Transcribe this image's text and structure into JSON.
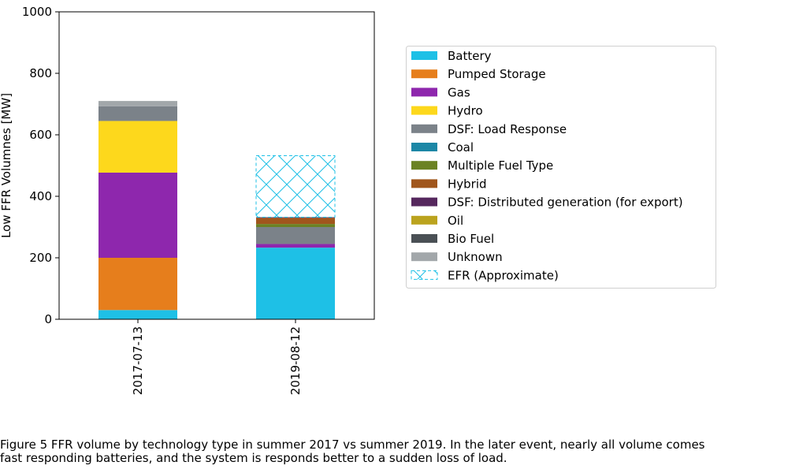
{
  "chart_data": {
    "type": "bar",
    "stacked": true,
    "title": "",
    "xlabel": "",
    "ylabel": "Low FFR Volumnes [MW]",
    "ylim": [
      0,
      1000
    ],
    "yticks": [
      0,
      200,
      400,
      600,
      800,
      1000
    ],
    "categories": [
      "2017-07-13",
      "2019-08-12"
    ],
    "legend_position": "right",
    "series": [
      {
        "name": "Battery",
        "color": "#1ec0e6",
        "values": [
          30,
          233
        ]
      },
      {
        "name": "Pumped Storage",
        "color": "#e67e1c",
        "values": [
          170,
          0
        ]
      },
      {
        "name": "Gas",
        "color": "#8e27ad",
        "values": [
          277,
          12
        ]
      },
      {
        "name": "Hydro",
        "color": "#fdd81c",
        "values": [
          168,
          0
        ]
      },
      {
        "name": "DSF: Load Response",
        "color": "#7b8289",
        "values": [
          48,
          55
        ]
      },
      {
        "name": "Coal",
        "color": "#1c87a6",
        "values": [
          0,
          0
        ]
      },
      {
        "name": "Multiple Fuel Type",
        "color": "#6b8223",
        "values": [
          0,
          10
        ]
      },
      {
        "name": "Hybrid",
        "color": "#a0561c",
        "values": [
          0,
          20
        ]
      },
      {
        "name": "DSF: Distributed generation (for export)",
        "color": "#55275d",
        "values": [
          0,
          2
        ]
      },
      {
        "name": "Oil",
        "color": "#bba31e",
        "values": [
          0,
          0
        ]
      },
      {
        "name": "Bio Fuel",
        "color": "#4a5055",
        "values": [
          0,
          0
        ]
      },
      {
        "name": "Unknown",
        "color": "#a2a7aa",
        "values": [
          17,
          0
        ]
      },
      {
        "name": "EFR (Approximate)",
        "color": "#1ec0e6",
        "hatched": true,
        "values": [
          0,
          200
        ]
      }
    ]
  },
  "caption": "Figure 5 FFR volume by technology type in summer 2017 vs summer 2019. In the later event, nearly all volume comes\nfast responding batteries, and the system is responds better to a sudden loss of load."
}
